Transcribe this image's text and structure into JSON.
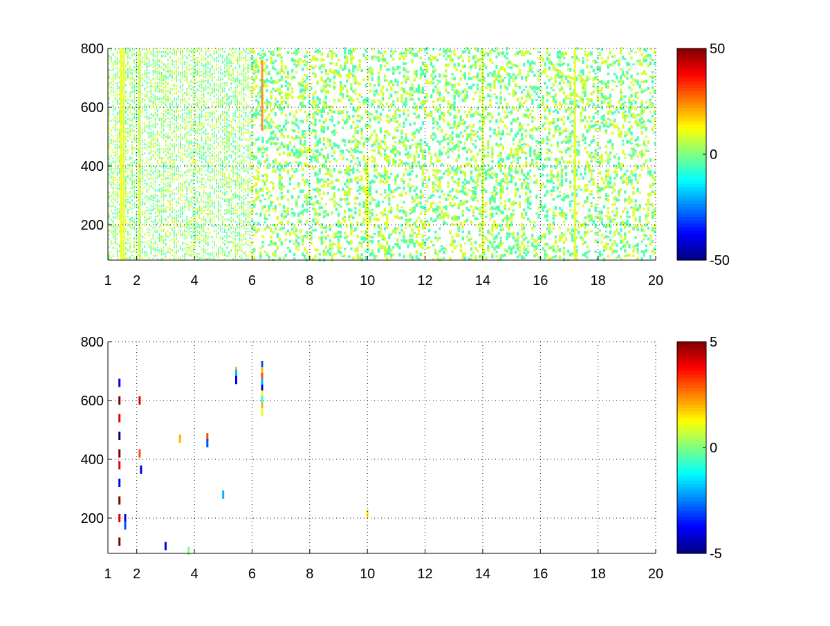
{
  "chart_data": [
    {
      "type": "heatmap",
      "title": "",
      "xlabel": "",
      "ylabel": "",
      "xlim": [
        1,
        20
      ],
      "ylim": [
        80,
        800
      ],
      "xticks": [
        1,
        2,
        4,
        6,
        8,
        10,
        12,
        14,
        16,
        18,
        20
      ],
      "xtick_labels": [
        "1",
        "2",
        "4",
        "6",
        "8",
        "10",
        "12",
        "14",
        "16",
        "18",
        "20"
      ],
      "yticks": [
        200,
        400,
        600,
        800
      ],
      "ytick_labels": [
        "200",
        "400",
        "600",
        "800"
      ],
      "grid": true,
      "colormap": "jet",
      "colorbar": {
        "min": -50,
        "max": 50,
        "tick_labels": [
          "50",
          "0",
          "-50"
        ]
      },
      "density": "dense",
      "seed": 17,
      "bands": [
        {
          "x": 1.45,
          "ymin": 80,
          "ymax": 800,
          "value": 12
        },
        {
          "x": 1.55,
          "ymin": 80,
          "ymax": 800,
          "value": 10
        },
        {
          "x": 2.1,
          "ymin": 80,
          "ymax": 800,
          "value": 8
        },
        {
          "x": 6.35,
          "ymin": 520,
          "ymax": 760,
          "value": 25
        },
        {
          "x": 10.0,
          "ymin": 150,
          "ymax": 420,
          "value": 12
        },
        {
          "x": 14.0,
          "ymin": 80,
          "ymax": 800,
          "value": 9
        },
        {
          "x": 17.2,
          "ymin": 80,
          "ymax": 800,
          "value": 10
        }
      ]
    },
    {
      "type": "heatmap",
      "title": "",
      "xlabel": "",
      "ylabel": "",
      "xlim": [
        1,
        20
      ],
      "ylim": [
        80,
        800
      ],
      "xticks": [
        1,
        2,
        4,
        6,
        8,
        10,
        12,
        14,
        16,
        18,
        20
      ],
      "xtick_labels": [
        "1",
        "2",
        "4",
        "6",
        "8",
        "10",
        "12",
        "14",
        "16",
        "18",
        "20"
      ],
      "yticks": [
        200,
        400,
        600,
        800
      ],
      "ytick_labels": [
        "200",
        "400",
        "600",
        "800"
      ],
      "grid": true,
      "colormap": "jet",
      "colorbar": {
        "min": -5,
        "max": 5,
        "tick_labels": [
          "5",
          "0",
          "-5"
        ]
      },
      "density": "sparse",
      "seed": 5,
      "cells": [
        {
          "x": 1.4,
          "y": 660,
          "value": -4
        },
        {
          "x": 1.4,
          "y": 600,
          "value": 5
        },
        {
          "x": 1.4,
          "y": 540,
          "value": 4
        },
        {
          "x": 1.4,
          "y": 480,
          "value": -5
        },
        {
          "x": 1.4,
          "y": 420,
          "value": 5
        },
        {
          "x": 1.4,
          "y": 380,
          "value": 4
        },
        {
          "x": 1.4,
          "y": 320,
          "value": -4
        },
        {
          "x": 1.4,
          "y": 260,
          "value": 5
        },
        {
          "x": 1.4,
          "y": 200,
          "value": 4
        },
        {
          "x": 1.4,
          "y": 120,
          "value": 5
        },
        {
          "x": 1.6,
          "y": 200,
          "value": -4
        },
        {
          "x": 1.6,
          "y": 175,
          "value": -3
        },
        {
          "x": 2.1,
          "y": 600,
          "value": 4
        },
        {
          "x": 2.1,
          "y": 420,
          "value": 3
        },
        {
          "x": 2.15,
          "y": 365,
          "value": -4
        },
        {
          "x": 3.0,
          "y": 105,
          "value": -4
        },
        {
          "x": 3.5,
          "y": 470,
          "value": 2
        },
        {
          "x": 3.8,
          "y": 88,
          "value": 0
        },
        {
          "x": 4.45,
          "y": 475,
          "value": 3
        },
        {
          "x": 4.45,
          "y": 455,
          "value": -3
        },
        {
          "x": 5.0,
          "y": 280,
          "value": -2
        },
        {
          "x": 5.45,
          "y": 700,
          "value": 2
        },
        {
          "x": 5.45,
          "y": 690,
          "value": -2
        },
        {
          "x": 5.45,
          "y": 670,
          "value": -4
        },
        {
          "x": 6.35,
          "y": 720,
          "value": -3
        },
        {
          "x": 6.35,
          "y": 700,
          "value": 2
        },
        {
          "x": 6.35,
          "y": 680,
          "value": 3
        },
        {
          "x": 6.35,
          "y": 660,
          "value": -2
        },
        {
          "x": 6.35,
          "y": 640,
          "value": -4
        },
        {
          "x": 6.35,
          "y": 620,
          "value": 1
        },
        {
          "x": 6.35,
          "y": 600,
          "value": -1
        },
        {
          "x": 6.35,
          "y": 580,
          "value": 2
        },
        {
          "x": 6.35,
          "y": 560,
          "value": 1
        },
        {
          "x": 10.0,
          "y": 215,
          "value": 1.5
        }
      ]
    }
  ]
}
